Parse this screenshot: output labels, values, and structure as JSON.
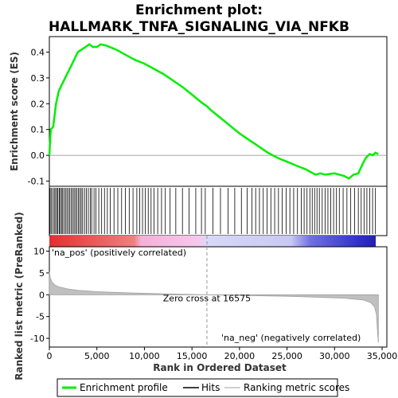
{
  "title_line1": "Enrichment plot:",
  "title_line2": "HALLMARK_TNFA_SIGNALING_VIA_NFKB",
  "colors": {
    "profile": "#00ee00",
    "hits": "#000000",
    "metric_fill": "#c0c0c0",
    "pos_color": "#e05050",
    "neg_color": "#4444dd",
    "pos_label_color": "#cc0000",
    "neg_label_color": "#0000cc"
  },
  "chart_data": {
    "type": "line",
    "x_domain": [
      0,
      35500
    ],
    "xticks": [
      0,
      5000,
      10000,
      15000,
      20000,
      25000,
      30000,
      35000
    ],
    "xtick_labels": [
      "0",
      "5,000",
      "10,000",
      "15,000",
      "20,000",
      "25,000",
      "30,000",
      "35,000"
    ],
    "xlabel": "Rank in Ordered Dataset",
    "top": {
      "ylabel": "Enrichment score (ES)",
      "ylim": [
        -0.12,
        0.46
      ],
      "yticks": [
        -0.1,
        0.0,
        0.1,
        0.2,
        0.3,
        0.4
      ],
      "ytick_labels": [
        "-0.1",
        "0.0",
        "0.1",
        "0.2",
        "0.3",
        "0.4"
      ],
      "series": [
        {
          "name": "Enrichment profile",
          "x": [
            0,
            150,
            400,
            700,
            1000,
            1400,
            1800,
            2200,
            2600,
            3000,
            3400,
            3800,
            4200,
            4600,
            5000,
            5400,
            6000,
            7000,
            8000,
            9000,
            10000,
            11000,
            12000,
            13000,
            14000,
            15000,
            16000,
            16575,
            17000,
            18000,
            19000,
            20000,
            21000,
            22000,
            23000,
            24000,
            25000,
            26000,
            27000,
            27500,
            28000,
            28500,
            29000,
            30000,
            30500,
            31000,
            31500,
            32000,
            32500,
            33000,
            33300,
            33700,
            34000,
            34300,
            34600
          ],
          "y": [
            0.0,
            0.1,
            0.11,
            0.2,
            0.25,
            0.28,
            0.31,
            0.34,
            0.37,
            0.4,
            0.41,
            0.42,
            0.43,
            0.42,
            0.42,
            0.43,
            0.425,
            0.41,
            0.39,
            0.37,
            0.355,
            0.335,
            0.315,
            0.29,
            0.265,
            0.235,
            0.205,
            0.19,
            0.175,
            0.145,
            0.115,
            0.085,
            0.06,
            0.035,
            0.01,
            -0.01,
            -0.025,
            -0.04,
            -0.055,
            -0.065,
            -0.075,
            -0.07,
            -0.075,
            -0.07,
            -0.075,
            -0.08,
            -0.09,
            -0.075,
            -0.07,
            -0.03,
            -0.01,
            0.005,
            0.0,
            0.01,
            0.005
          ]
        }
      ]
    },
    "hits_band": {
      "name": "Hits",
      "hit_positions": [
        80,
        200,
        380,
        520,
        650,
        800,
        900,
        1050,
        1150,
        1280,
        1400,
        1550,
        1700,
        1850,
        2000,
        2150,
        2300,
        2450,
        2600,
        2750,
        2900,
        3050,
        3200,
        3350,
        3500,
        3700,
        3900,
        4100,
        4300,
        4450,
        4700,
        4900,
        5200,
        5500,
        5800,
        6100,
        6400,
        6800,
        7200,
        7600,
        8000,
        8400,
        8800,
        9200,
        9500,
        9800,
        10100,
        10400,
        10700,
        11000,
        11400,
        11800,
        12200,
        12700,
        13300,
        14000,
        14700,
        15400,
        16000,
        16400,
        17200,
        18000,
        18800,
        19500,
        20200,
        20800,
        21300,
        21700,
        22100,
        22500,
        22900,
        23300,
        23700,
        24100,
        24500,
        24900,
        25300,
        25700,
        26100,
        26500,
        26800,
        27100,
        27400,
        27650,
        27900,
        28150,
        28400,
        28700,
        29000,
        29300,
        29600,
        29900,
        30200,
        30500,
        30900,
        31300,
        31700,
        32100,
        32500,
        32800,
        33100,
        33400,
        33700,
        34000,
        34300
      ]
    },
    "bottom": {
      "ylabel": "Ranked list metric (PreRanked)",
      "ylim": [
        -12,
        11
      ],
      "yticks": [
        -10,
        -5,
        0,
        5,
        10
      ],
      "ytick_labels": [
        "-10",
        "-5",
        "0",
        "5",
        "10"
      ],
      "metric_x": [
        0,
        100,
        300,
        600,
        1000,
        2000,
        3000,
        5000,
        8000,
        12000,
        16575,
        20000,
        25000,
        28000,
        31000,
        33000,
        33800,
        34200,
        34400,
        34500,
        34600
      ],
      "metric_y": [
        5.2,
        3.8,
        2.8,
        2.2,
        1.8,
        1.3,
        1.0,
        0.7,
        0.45,
        0.2,
        0.0,
        -0.15,
        -0.35,
        -0.55,
        -0.8,
        -1.2,
        -1.8,
        -2.8,
        -4.5,
        -8.0,
        -11.0
      ],
      "zero_cross_label": "Zero cross at 16575",
      "zero_cross_x": 16575,
      "pos_label": "'na_pos' (positively correlated)",
      "neg_label": "'na_neg' (negatively correlated)"
    },
    "legend": {
      "placement": "bottom",
      "items": [
        {
          "label": "Enrichment profile",
          "color": "#00ee00"
        },
        {
          "label": "Hits",
          "color": "#000000"
        },
        {
          "label": "Ranking metric scores",
          "color": "#c0c0c0"
        }
      ]
    }
  }
}
